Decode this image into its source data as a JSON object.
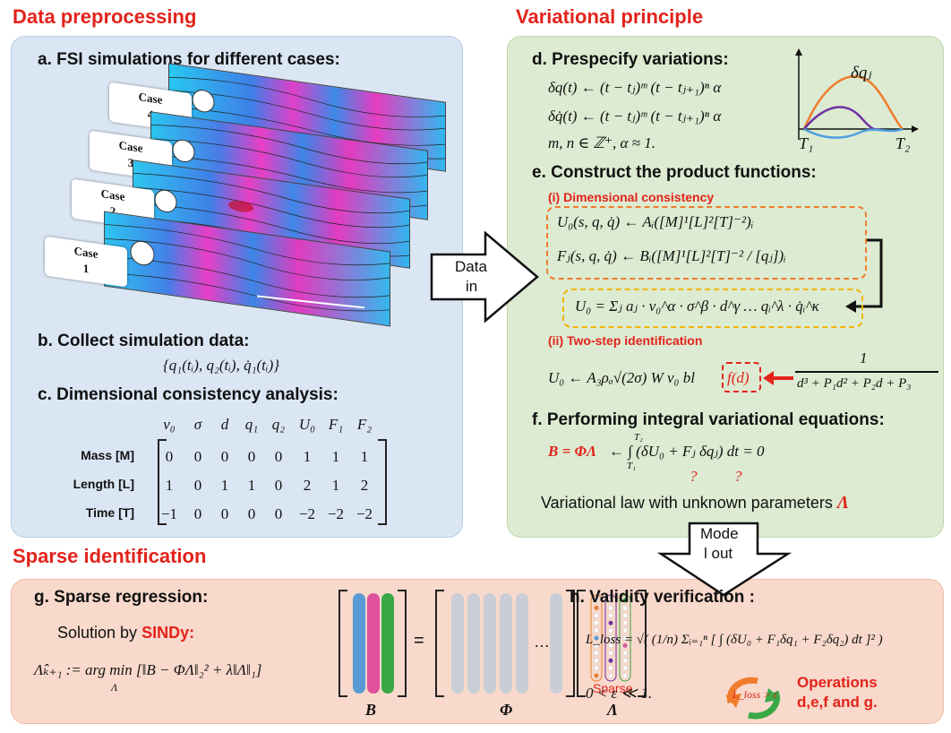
{
  "sections": {
    "preprocessing": "Data preprocessing",
    "variational": "Variational principle",
    "sparse": "Sparse identification"
  },
  "panel_a": {
    "title": "a. FSI simulations for different cases:",
    "cases": [
      {
        "line1": "Case",
        "line2": "4"
      },
      {
        "line1": "Case",
        "line2": "3"
      },
      {
        "line1": "Case",
        "line2": "2"
      },
      {
        "line1": "Case",
        "line2": "1"
      }
    ]
  },
  "panel_b": {
    "title": "b. Collect simulation data:",
    "formula": "{q₁(tᵢ), q₂(tᵢ), q̇₁(tᵢ)}"
  },
  "panel_c": {
    "title": "c. Dimensional consistency analysis:",
    "columns": [
      "v₀",
      "σ",
      "d",
      "q₁",
      "q₂",
      "U₀",
      "F₁",
      "F₂"
    ],
    "rows": [
      {
        "label": "Mass [M]",
        "values": [
          "0",
          "0",
          "0",
          "0",
          "0",
          "1",
          "1",
          "1"
        ]
      },
      {
        "label": "Length [L]",
        "values": [
          "1",
          "0",
          "1",
          "1",
          "0",
          "2",
          "1",
          "2"
        ]
      },
      {
        "label": "Time [T]",
        "values": [
          "−1",
          "0",
          "0",
          "0",
          "0",
          "−2",
          "−2",
          "−2"
        ]
      }
    ]
  },
  "arrow_in": {
    "line1": "Data",
    "line2": "in"
  },
  "arrow_out": {
    "line1": "Mode",
    "line2": "l out"
  },
  "panel_d": {
    "title": "d. Prespecify variations:",
    "eq1": "δq(t) ← (t − tⱼ)ᵐ (t − tⱼ₊₁)ⁿ α",
    "eq2": "δq̇(t) ← (t − tⱼ)ᵐ (t − tⱼ₊₁)ⁿ α",
    "eq3": "m, n ∈ ℤ⁺, α ≈ 1.",
    "plot_label": "δqⱼ",
    "t1": "T₁",
    "t2": "T₂"
  },
  "panel_e": {
    "title": "e. Construct the product functions:",
    "sub1": "(i) Dimensional consistency",
    "eq_u0": "U₀(s, q, q̇) ← Aᵢ([M]¹[L]²[T]⁻²)ᵢ",
    "eq_fj": "Fⱼ(s, q, q̇) ← Bᵢ([M]¹[L]²[T]⁻² / [qⱼ])ᵢ",
    "eq_sum": "U₀ = Σⱼ aⱼ · v₀^α · σ^β · d^γ … qᵢ^λ · q̇ᵢ^κ",
    "sub2": "(ii) Two-step identification",
    "eq_two_left": "U₀ ← A₃ρₐ√(2σ) W v₀ bl",
    "eq_two_fd": "f(d)",
    "eq_two_num": "1",
    "eq_two_den": "d³ + P₁d² + P₂d + P₃"
  },
  "panel_f": {
    "title": "f. Performing integral variational equations:",
    "eq_left": "B = ΦΛ",
    "eq_right": "← ∫ (δU₀ + Fⱼ δqⱼ) dt = 0",
    "lim_top": "T₂",
    "lim_bot": "T₁",
    "q1": "?",
    "q2": "?",
    "law": "Variational law with unknown parameters",
    "law_symbol": "Λ"
  },
  "panel_g": {
    "title": "g. Sparse regression:",
    "solution_prefix": "Solution by",
    "solution_method": "SINDy:",
    "eq": "Λ̂ₖ₊₁ := arg min [‖B − ΦΛ‖₂² + λ‖Λ‖₁]",
    "eq_sub": "Λ",
    "label_b": "B",
    "label_phi": "Φ",
    "label_lambda": "Λ",
    "equals": "=",
    "dots": "…",
    "sparse": "Sparse"
  },
  "panel_h": {
    "title": "h. Validity verification :",
    "eq": "L_loss = √( (1/n) Σᵢ₌₁ⁿ [ ∫ (δU₀ + F₁δq₁ + F₂δq₂) dt ]² )",
    "cond": "0 < ε ≪ 1.",
    "loop": "L_loss > ε",
    "ops1": "Operations",
    "ops2": "d,e,f and g."
  },
  "colors": {
    "red": "#e3231b",
    "blue_panel": "#dae6f4",
    "green_panel": "#dcebd2",
    "pink_panel": "#f8d9cb",
    "orange_dash": "#ef7d2d",
    "yellow_dash": "#f2b400"
  }
}
